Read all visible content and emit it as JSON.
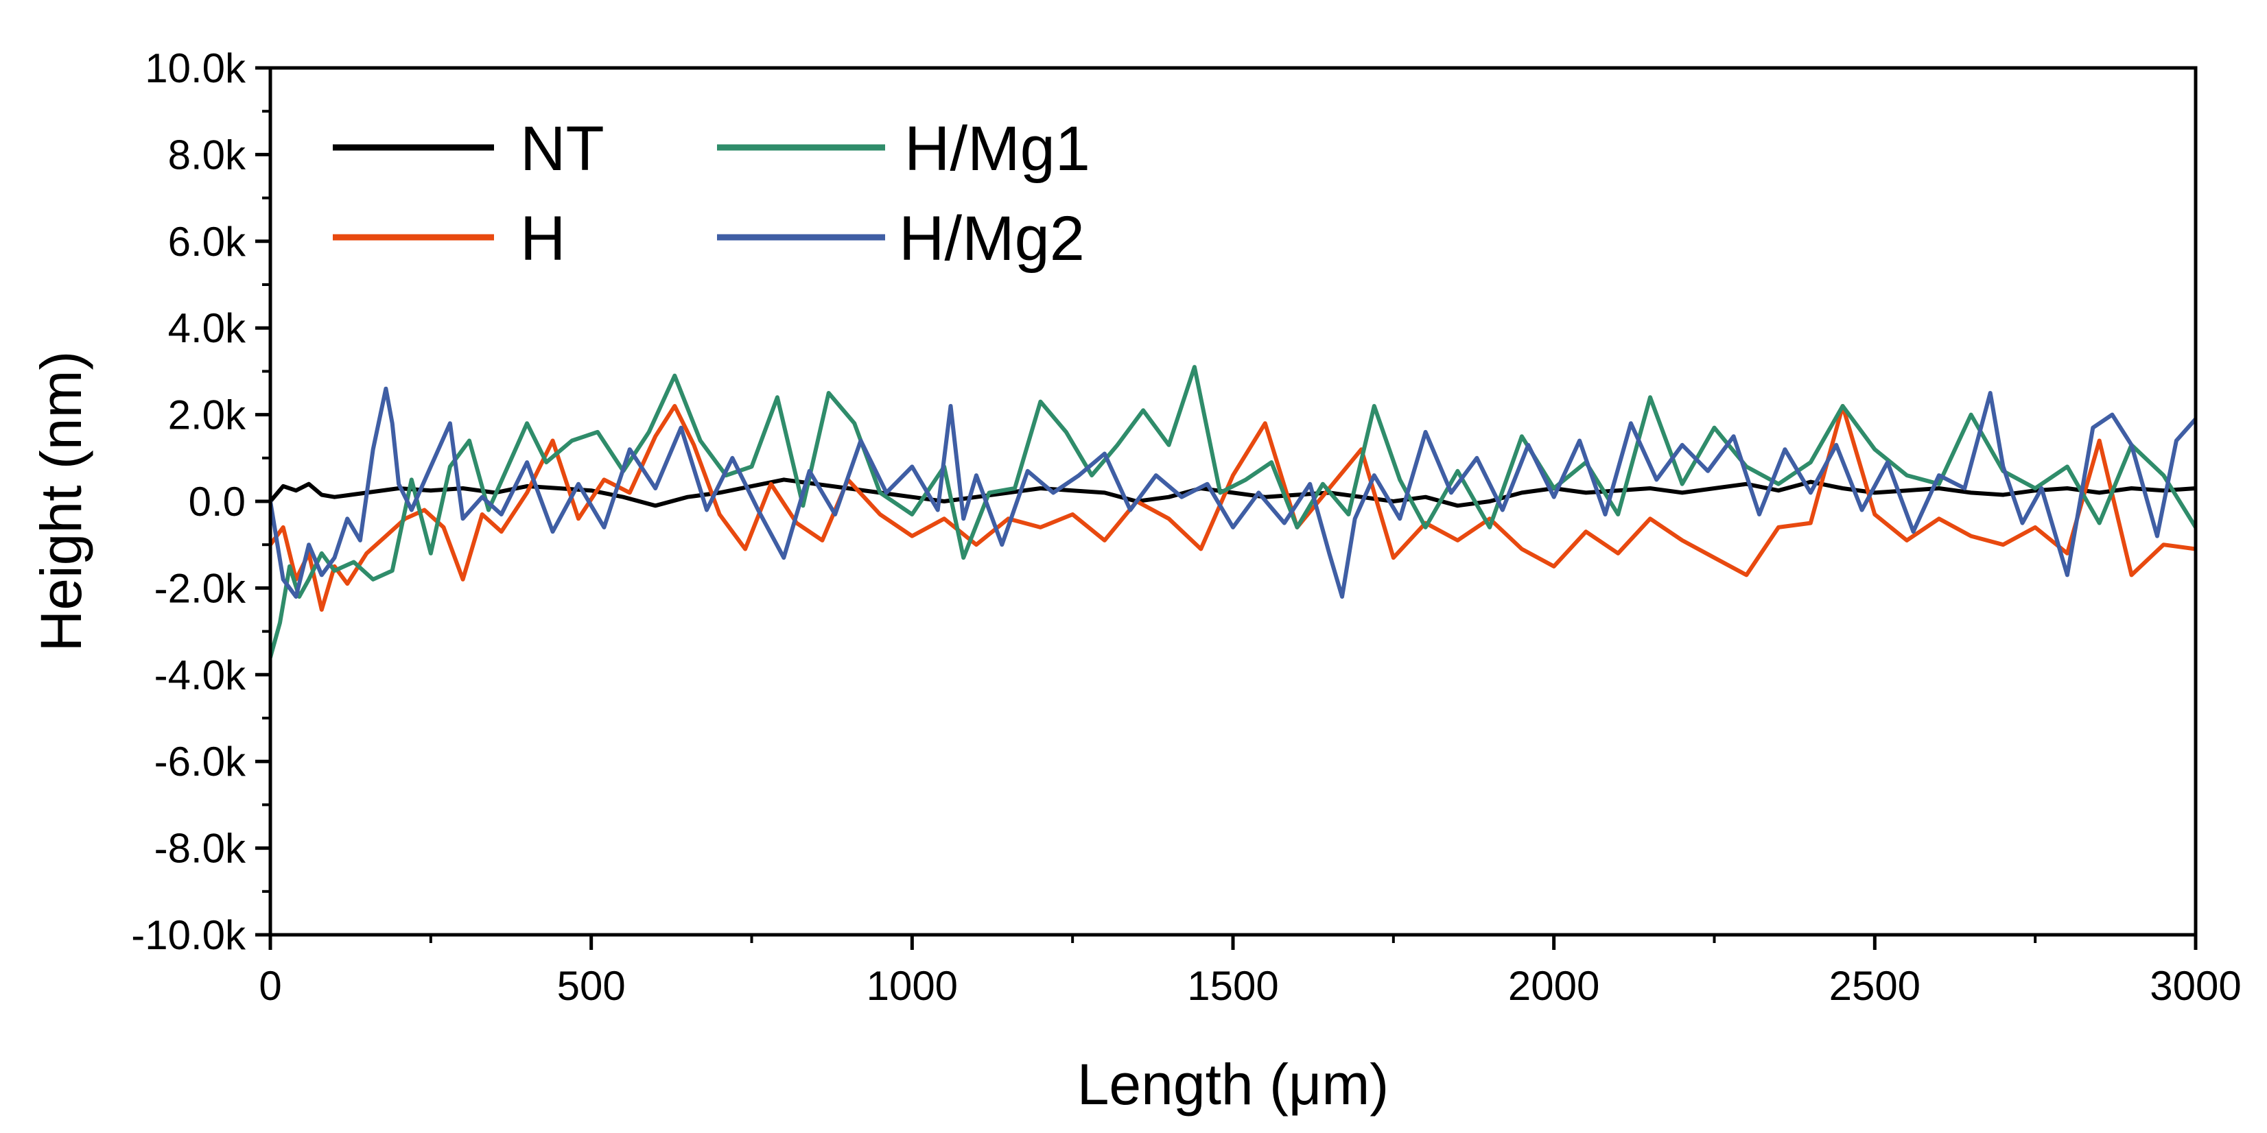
{
  "chart_data": {
    "type": "line",
    "xlabel": "Length (μm)",
    "ylabel": "Height (nm)",
    "xlim": [
      0,
      3000
    ],
    "ylim": [
      -10000,
      10000
    ],
    "x_ticks": [
      0,
      500,
      1000,
      1500,
      2000,
      2500,
      3000
    ],
    "x_tick_labels": [
      "0",
      "500",
      "1000",
      "1500",
      "2000",
      "2500",
      "3000"
    ],
    "y_ticks": [
      -10000,
      -8000,
      -6000,
      -4000,
      -2000,
      0,
      2000,
      4000,
      6000,
      8000,
      10000
    ],
    "y_tick_labels": [
      "-10.0k",
      "-8.0k",
      "-6.0k",
      "-4.0k",
      "-2.0k",
      "0.0",
      "2.0k",
      "4.0k",
      "6.0k",
      "8.0k",
      "10.0k"
    ],
    "grid": false,
    "legend_position": "top-left",
    "series": [
      {
        "name": "NT",
        "color": "#000000",
        "x": [
          0,
          20,
          40,
          60,
          80,
          100,
          150,
          200,
          250,
          300,
          350,
          400,
          450,
          500,
          550,
          600,
          650,
          700,
          750,
          800,
          850,
          900,
          950,
          1000,
          1050,
          1100,
          1150,
          1200,
          1250,
          1300,
          1350,
          1400,
          1450,
          1500,
          1550,
          1600,
          1650,
          1700,
          1750,
          1800,
          1850,
          1900,
          1950,
          2000,
          2050,
          2100,
          2150,
          2200,
          2250,
          2300,
          2350,
          2400,
          2450,
          2500,
          2550,
          2600,
          2650,
          2700,
          2750,
          2800,
          2850,
          2900,
          2950,
          3000
        ],
        "values": [
          0,
          350,
          250,
          400,
          150,
          100,
          200,
          300,
          250,
          300,
          200,
          350,
          300,
          250,
          100,
          -100,
          100,
          200,
          350,
          500,
          400,
          300,
          200,
          100,
          0,
          100,
          200,
          300,
          250,
          200,
          0,
          100,
          300,
          200,
          100,
          150,
          200,
          100,
          0,
          100,
          -100,
          0,
          200,
          300,
          200,
          250,
          300,
          200,
          300,
          400,
          250,
          450,
          300,
          200,
          250,
          300,
          200,
          150,
          250,
          300,
          200,
          300,
          250,
          300
        ]
      },
      {
        "name": "H",
        "color": "#e8490f",
        "x": [
          0,
          20,
          40,
          60,
          80,
          100,
          120,
          150,
          180,
          210,
          240,
          270,
          300,
          330,
          360,
          400,
          440,
          480,
          520,
          560,
          600,
          630,
          660,
          700,
          740,
          780,
          820,
          860,
          900,
          950,
          1000,
          1050,
          1100,
          1150,
          1200,
          1250,
          1300,
          1350,
          1400,
          1450,
          1500,
          1550,
          1600,
          1650,
          1700,
          1750,
          1800,
          1850,
          1900,
          1950,
          2000,
          2050,
          2100,
          2150,
          2200,
          2250,
          2300,
          2350,
          2400,
          2450,
          2500,
          2550,
          2600,
          2650,
          2700,
          2750,
          2800,
          2850,
          2900,
          2950,
          3000
        ],
        "values": [
          -1000,
          -600,
          -1800,
          -1200,
          -2500,
          -1500,
          -1900,
          -1200,
          -800,
          -400,
          -200,
          -600,
          -1800,
          -300,
          -700,
          200,
          1400,
          -400,
          500,
          200,
          1500,
          2200,
          1300,
          -300,
          -1100,
          400,
          -500,
          -900,
          500,
          -300,
          -800,
          -400,
          -1000,
          -400,
          -600,
          -300,
          -900,
          0,
          -400,
          -1100,
          600,
          1800,
          -600,
          300,
          1200,
          -1300,
          -500,
          -900,
          -400,
          -1100,
          -1500,
          -700,
          -1200,
          -400,
          -900,
          -1300,
          -1700,
          -600,
          -500,
          2200,
          -300,
          -900,
          -400,
          -800,
          -1000,
          -600,
          -1200,
          1400,
          -1700,
          -1000,
          -1100
        ]
      },
      {
        "name": "H/Mg1",
        "color": "#2f8c6a",
        "x": [
          0,
          15,
          30,
          45,
          60,
          80,
          100,
          130,
          160,
          190,
          220,
          250,
          280,
          310,
          340,
          370,
          400,
          430,
          470,
          510,
          550,
          590,
          630,
          670,
          710,
          750,
          790,
          830,
          870,
          910,
          950,
          1000,
          1050,
          1080,
          1120,
          1160,
          1200,
          1240,
          1280,
          1320,
          1360,
          1400,
          1440,
          1480,
          1520,
          1560,
          1600,
          1640,
          1680,
          1720,
          1760,
          1800,
          1850,
          1900,
          1950,
          2000,
          2050,
          2100,
          2150,
          2200,
          2250,
          2300,
          2350,
          2400,
          2450,
          2500,
          2550,
          2600,
          2650,
          2700,
          2750,
          2800,
          2850,
          2900,
          2950,
          3000
        ],
        "values": [
          -3600,
          -2800,
          -1500,
          -2200,
          -1800,
          -1200,
          -1600,
          -1400,
          -1800,
          -1600,
          500,
          -1200,
          800,
          1400,
          -200,
          800,
          1800,
          900,
          1400,
          1600,
          700,
          1600,
          2900,
          1400,
          600,
          800,
          2400,
          -100,
          2500,
          1800,
          200,
          -300,
          800,
          -1300,
          200,
          300,
          2300,
          1600,
          600,
          1300,
          2100,
          1300,
          3100,
          200,
          500,
          900,
          -600,
          400,
          -300,
          2200,
          500,
          -600,
          700,
          -600,
          1500,
          300,
          900,
          -300,
          2400,
          400,
          1700,
          800,
          400,
          900,
          2200,
          1200,
          600,
          400,
          2000,
          700,
          300,
          800,
          -500,
          1300,
          600,
          -600
        ]
      },
      {
        "name": "H/Mg2",
        "color": "#3f5ea4",
        "x": [
          0,
          20,
          40,
          60,
          80,
          100,
          120,
          140,
          160,
          180,
          190,
          200,
          220,
          250,
          280,
          300,
          330,
          360,
          400,
          440,
          480,
          520,
          560,
          600,
          640,
          680,
          720,
          760,
          800,
          840,
          880,
          920,
          960,
          1000,
          1040,
          1060,
          1080,
          1100,
          1140,
          1180,
          1220,
          1260,
          1300,
          1340,
          1380,
          1420,
          1460,
          1500,
          1540,
          1580,
          1620,
          1650,
          1670,
          1690,
          1720,
          1760,
          1800,
          1840,
          1880,
          1920,
          1960,
          2000,
          2040,
          2080,
          2120,
          2160,
          2200,
          2240,
          2280,
          2320,
          2360,
          2400,
          2440,
          2480,
          2520,
          2560,
          2600,
          2640,
          2680,
          2700,
          2730,
          2760,
          2800,
          2840,
          2870,
          2900,
          2940,
          2970,
          3000
        ],
        "values": [
          0,
          -1800,
          -2200,
          -1000,
          -1700,
          -1300,
          -400,
          -900,
          1200,
          2600,
          1800,
          400,
          -200,
          800,
          1800,
          -400,
          100,
          -300,
          900,
          -700,
          400,
          -600,
          1200,
          300,
          1700,
          -200,
          1000,
          -200,
          -1300,
          700,
          -300,
          1400,
          200,
          800,
          -200,
          2200,
          -400,
          600,
          -1000,
          700,
          200,
          600,
          1100,
          -200,
          600,
          100,
          400,
          -600,
          200,
          -500,
          400,
          -1200,
          -2200,
          -400,
          600,
          -400,
          1600,
          200,
          1000,
          -200,
          1300,
          100,
          1400,
          -300,
          1800,
          500,
          1300,
          700,
          1500,
          -300,
          1200,
          200,
          1300,
          -200,
          900,
          -700,
          600,
          300,
          2500,
          800,
          -500,
          300,
          -1700,
          1700,
          2000,
          1300,
          -800,
          1400,
          1900
        ]
      }
    ]
  }
}
